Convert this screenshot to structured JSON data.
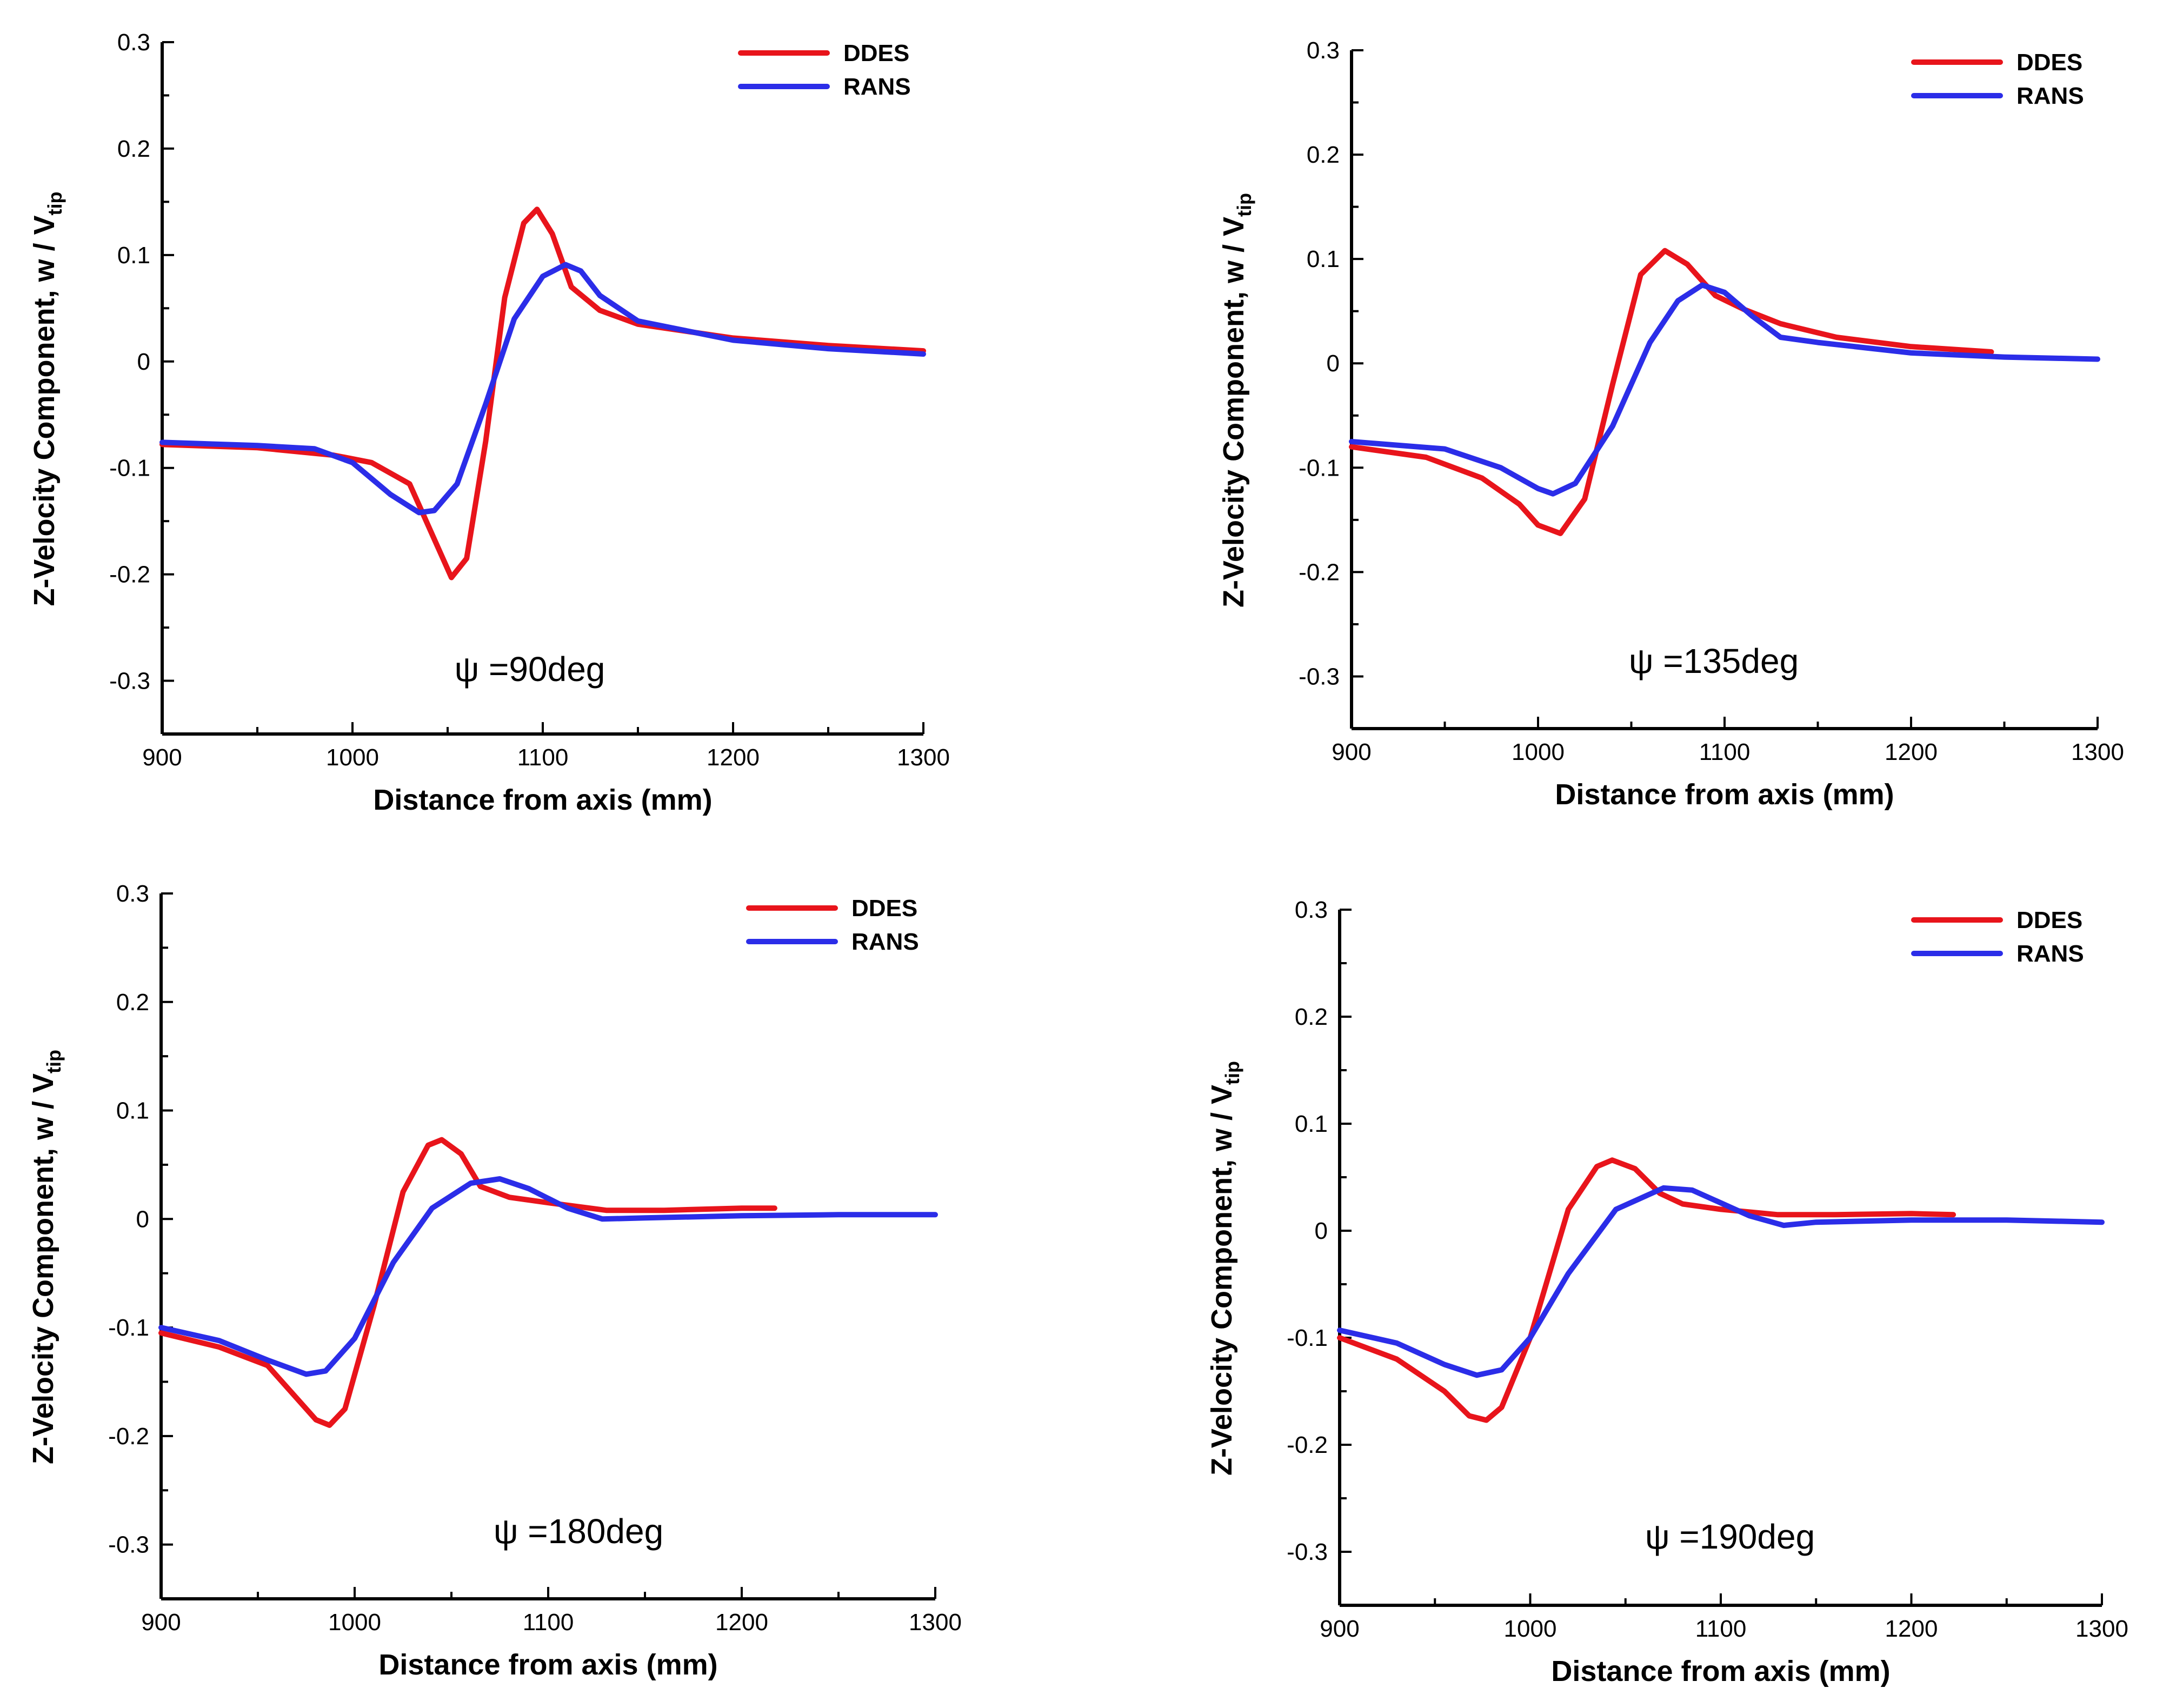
{
  "chart_data": [
    {
      "type": "line",
      "annotation": "ψ =90deg",
      "xlabel": "Distance from axis (mm)",
      "ylabel_main": "Z-Velocity Component, w / V",
      "ylabel_sub": "tip",
      "xlim": [
        900,
        1300
      ],
      "ylim": [
        -0.35,
        0.3
      ],
      "xticks": [
        "900",
        "1000",
        "1100",
        "1200",
        "1300"
      ],
      "yticks": [
        "0.3",
        "0.2",
        "0.1",
        "0",
        "-0.1",
        "-0.2",
        "-0.3"
      ],
      "legend": [
        "DDES",
        "RANS"
      ],
      "series": [
        {
          "name": "DDES",
          "color": "#e8141b",
          "x": [
            900,
            950,
            990,
            1010,
            1030,
            1045,
            1052,
            1060,
            1070,
            1080,
            1090,
            1097,
            1105,
            1115,
            1130,
            1150,
            1200,
            1250,
            1300
          ],
          "y": [
            -0.078,
            -0.081,
            -0.088,
            -0.095,
            -0.115,
            -0.175,
            -0.203,
            -0.185,
            -0.075,
            0.06,
            0.13,
            0.143,
            0.12,
            0.07,
            0.048,
            0.035,
            0.022,
            0.015,
            0.01
          ]
        },
        {
          "name": "RANS",
          "color": "#2b2de8",
          "x": [
            900,
            950,
            980,
            1000,
            1020,
            1035,
            1043,
            1055,
            1070,
            1085,
            1100,
            1112,
            1120,
            1130,
            1150,
            1200,
            1250,
            1300
          ],
          "y": [
            -0.076,
            -0.079,
            -0.082,
            -0.095,
            -0.125,
            -0.142,
            -0.14,
            -0.115,
            -0.04,
            0.04,
            0.08,
            0.091,
            0.085,
            0.062,
            0.038,
            0.02,
            0.012,
            0.007
          ]
        }
      ]
    },
    {
      "type": "line",
      "annotation": "ψ =135deg",
      "xlabel": "Distance from axis (mm)",
      "ylabel_main": "Z-Velocity Component, w / V",
      "ylabel_sub": "tip",
      "xlim": [
        900,
        1300
      ],
      "ylim": [
        -0.35,
        0.3
      ],
      "xticks": [
        "900",
        "1000",
        "1100",
        "1200",
        "1300"
      ],
      "yticks": [
        "0.3",
        "0.2",
        "0.1",
        "0",
        "-0.1",
        "-0.2",
        "-0.3"
      ],
      "legend": [
        "DDES",
        "RANS"
      ],
      "series": [
        {
          "name": "DDES",
          "color": "#e8141b",
          "x": [
            900,
            940,
            970,
            990,
            1000,
            1012,
            1025,
            1040,
            1055,
            1068,
            1080,
            1095,
            1110,
            1130,
            1160,
            1200,
            1243
          ],
          "y": [
            -0.08,
            -0.09,
            -0.11,
            -0.135,
            -0.155,
            -0.163,
            -0.13,
            -0.02,
            0.085,
            0.108,
            0.095,
            0.065,
            0.052,
            0.038,
            0.025,
            0.016,
            0.011
          ]
        },
        {
          "name": "RANS",
          "color": "#2b2de8",
          "x": [
            900,
            950,
            980,
            1000,
            1008,
            1020,
            1040,
            1060,
            1075,
            1088,
            1100,
            1115,
            1130,
            1150,
            1200,
            1250,
            1300
          ],
          "y": [
            -0.075,
            -0.082,
            -0.1,
            -0.12,
            -0.125,
            -0.115,
            -0.06,
            0.02,
            0.06,
            0.075,
            0.068,
            0.045,
            0.025,
            0.02,
            0.01,
            0.006,
            0.004
          ]
        }
      ]
    },
    {
      "type": "line",
      "annotation": "ψ =180deg",
      "xlabel": "Distance from axis (mm)",
      "ylabel_main": "Z-Velocity Component, w / V",
      "ylabel_sub": "tip",
      "xlim": [
        900,
        1300
      ],
      "ylim": [
        -0.35,
        0.3
      ],
      "xticks": [
        "900",
        "1000",
        "1100",
        "1200",
        "1300"
      ],
      "yticks": [
        "0.3",
        "0.2",
        "0.1",
        "0",
        "-0.1",
        "-0.2",
        "-0.3"
      ],
      "legend": [
        "DDES",
        "RANS"
      ],
      "series": [
        {
          "name": "DDES",
          "color": "#e8141b",
          "x": [
            900,
            930,
            955,
            970,
            980,
            987,
            995,
            1010,
            1025,
            1038,
            1045,
            1055,
            1065,
            1080,
            1100,
            1130,
            1160,
            1200,
            1217
          ],
          "y": [
            -0.105,
            -0.118,
            -0.135,
            -0.165,
            -0.185,
            -0.19,
            -0.175,
            -0.08,
            0.025,
            0.068,
            0.073,
            0.06,
            0.03,
            0.02,
            0.015,
            0.008,
            0.008,
            0.01,
            0.01
          ]
        },
        {
          "name": "RANS",
          "color": "#2b2de8",
          "x": [
            900,
            930,
            955,
            975,
            985,
            1000,
            1020,
            1040,
            1060,
            1075,
            1090,
            1110,
            1128,
            1150,
            1200,
            1250,
            1300
          ],
          "y": [
            -0.1,
            -0.112,
            -0.13,
            -0.143,
            -0.14,
            -0.11,
            -0.04,
            0.01,
            0.033,
            0.037,
            0.028,
            0.01,
            0.0,
            0.001,
            0.003,
            0.004,
            0.004
          ]
        }
      ]
    },
    {
      "type": "line",
      "annotation": "ψ =190deg",
      "xlabel": "Distance from axis (mm)",
      "ylabel_main": "Z-Velocity Component, w / V",
      "ylabel_sub": "tip",
      "xlim": [
        900,
        1300
      ],
      "ylim": [
        -0.35,
        0.3
      ],
      "xticks": [
        "900",
        "1000",
        "1100",
        "1200",
        "1300"
      ],
      "yticks": [
        "0.3",
        "0.2",
        "0.1",
        "0",
        "-0.1",
        "-0.2",
        "-0.3"
      ],
      "legend": [
        "DDES",
        "RANS"
      ],
      "series": [
        {
          "name": "DDES",
          "color": "#e8141b",
          "x": [
            900,
            930,
            955,
            968,
            977,
            985,
            1000,
            1020,
            1035,
            1043,
            1055,
            1068,
            1080,
            1100,
            1130,
            1160,
            1200,
            1222
          ],
          "y": [
            -0.1,
            -0.12,
            -0.15,
            -0.173,
            -0.177,
            -0.165,
            -0.1,
            0.02,
            0.06,
            0.066,
            0.058,
            0.035,
            0.025,
            0.02,
            0.015,
            0.015,
            0.016,
            0.015
          ]
        },
        {
          "name": "RANS",
          "color": "#2b2de8",
          "x": [
            900,
            930,
            955,
            972,
            985,
            1000,
            1020,
            1045,
            1070,
            1085,
            1100,
            1115,
            1133,
            1150,
            1200,
            1250,
            1300
          ],
          "y": [
            -0.093,
            -0.105,
            -0.125,
            -0.135,
            -0.13,
            -0.1,
            -0.04,
            0.02,
            0.04,
            0.038,
            0.026,
            0.014,
            0.005,
            0.008,
            0.01,
            0.01,
            0.008
          ]
        }
      ]
    }
  ]
}
